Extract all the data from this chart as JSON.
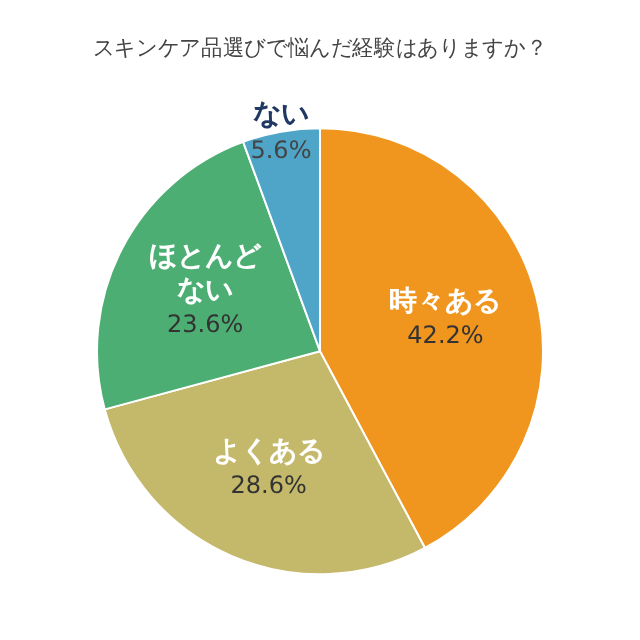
{
  "chart_data": {
    "type": "pie",
    "title": "スキンケア品選びで悩んだ経験はありますか？",
    "categories": [
      "時々ある",
      "よくある",
      "ほとんどない",
      "ない"
    ],
    "values": [
      42.2,
      28.6,
      23.6,
      5.6
    ],
    "colors": [
      "#f0961e",
      "#c4b86a",
      "#4cae72",
      "#4ea5c8"
    ],
    "value_labels": [
      "42.2%",
      "28.6%",
      "23.6%",
      "5.6%"
    ],
    "legend": false
  }
}
